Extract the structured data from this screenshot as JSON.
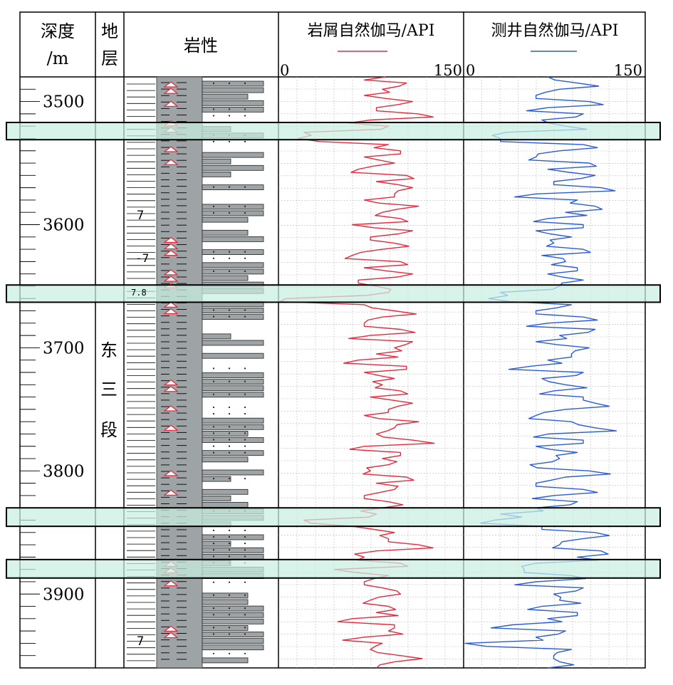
{
  "header": {
    "depth_label_1": "深度",
    "depth_label_2": "/m",
    "strata_label_1": "地",
    "strata_label_2": "层",
    "lithology_label": "岩性",
    "cuttings_title": "岩屑自然伽马/API",
    "logging_title": "测井自然伽马/API",
    "cuttings_min": "0",
    "cuttings_max": "150",
    "logging_min": "0",
    "logging_max": "150"
  },
  "strata": {
    "name_chars": [
      "东",
      "三",
      "段"
    ]
  },
  "lithology": {
    "symbol_7": "7",
    "symbol_neg7": "-7",
    "symbol_78": "7.8"
  },
  "colors": {
    "cuttings_line": "#e8283c",
    "logging_line": "#2a5bd7",
    "highlight_fill": "#c9f0e2",
    "lith_fill": "#9ea3a6"
  },
  "chart_data": {
    "type": "line",
    "y_axis": {
      "label": "深度/m",
      "range": [
        3480,
        3960
      ],
      "inverted": true,
      "ticks": [
        3500,
        3600,
        3700,
        3800,
        3900
      ]
    },
    "x_axis": {
      "range": [
        0,
        150
      ]
    },
    "highlight_depths": [
      [
        3517,
        3531
      ],
      [
        3649,
        3663
      ],
      [
        3830,
        3845
      ],
      [
        3872,
        3887
      ]
    ],
    "depth": [
      3480,
      3485,
      3490,
      3495,
      3500,
      3505,
      3510,
      3515,
      3520,
      3525,
      3530,
      3535,
      3540,
      3545,
      3550,
      3555,
      3560,
      3565,
      3570,
      3575,
      3580,
      3585,
      3590,
      3595,
      3600,
      3605,
      3610,
      3615,
      3620,
      3625,
      3630,
      3635,
      3640,
      3645,
      3650,
      3655,
      3660,
      3665,
      3670,
      3675,
      3680,
      3685,
      3690,
      3695,
      3700,
      3705,
      3710,
      3715,
      3720,
      3725,
      3730,
      3735,
      3740,
      3745,
      3750,
      3755,
      3760,
      3765,
      3770,
      3775,
      3780,
      3785,
      3790,
      3795,
      3800,
      3805,
      3810,
      3815,
      3820,
      3825,
      3830,
      3835,
      3840,
      3845,
      3850,
      3855,
      3860,
      3865,
      3870,
      3875,
      3880,
      3885,
      3890,
      3895,
      3900,
      3905,
      3910,
      3915,
      3920,
      3925,
      3930,
      3935,
      3940,
      3945,
      3950,
      3955,
      3960
    ],
    "series": [
      {
        "name": "岩屑自然伽马/API",
        "values": [
          88,
          105,
          85,
          70,
          110,
          80,
          115,
          75,
          90,
          20,
          15,
          90,
          100,
          70,
          95,
          65,
          105,
          80,
          110,
          95,
          70,
          115,
          85,
          100,
          60,
          110,
          75,
          95,
          85,
          60,
          100,
          70,
          110,
          65,
          80,
          90,
          5,
          70,
          95,
          85,
          70,
          100,
          75,
          110,
          95,
          80,
          65,
          105,
          70,
          95,
          85,
          100,
          75,
          110,
          90,
          70,
          115,
          95,
          80,
          110,
          70,
          100,
          85,
          90,
          75,
          105,
          80,
          95,
          70,
          90,
          85,
          80,
          20,
          60,
          95,
          90,
          115,
          80,
          70,
          100,
          45,
          90,
          70,
          85,
          100,
          75,
          90,
          80,
          60,
          95,
          90,
          70,
          85,
          75,
          100,
          95,
          80
        ]
      },
      {
        "name": "测井自然伽马/API",
        "values": [
          70,
          95,
          80,
          60,
          105,
          70,
          100,
          65,
          85,
          35,
          30,
          100,
          80,
          60,
          105,
          70,
          110,
          75,
          115,
          60,
          95,
          110,
          85,
          70,
          100,
          60,
          90,
          75,
          100,
          65,
          85,
          95,
          70,
          100,
          80,
          30,
          20,
          90,
          60,
          100,
          70,
          110,
          80,
          60,
          105,
          90,
          70,
          55,
          100,
          65,
          85,
          75,
          100,
          110,
          85,
          60,
          90,
          110,
          70,
          100,
          60,
          95,
          80,
          55,
          105,
          85,
          60,
          100,
          75,
          95,
          60,
          30,
          25,
          65,
          110,
          100,
          80,
          115,
          95,
          60,
          50,
          90,
          60,
          100,
          75,
          80,
          65,
          95,
          70,
          40,
          85,
          60,
          0,
          90,
          75,
          80,
          70
        ]
      }
    ]
  }
}
